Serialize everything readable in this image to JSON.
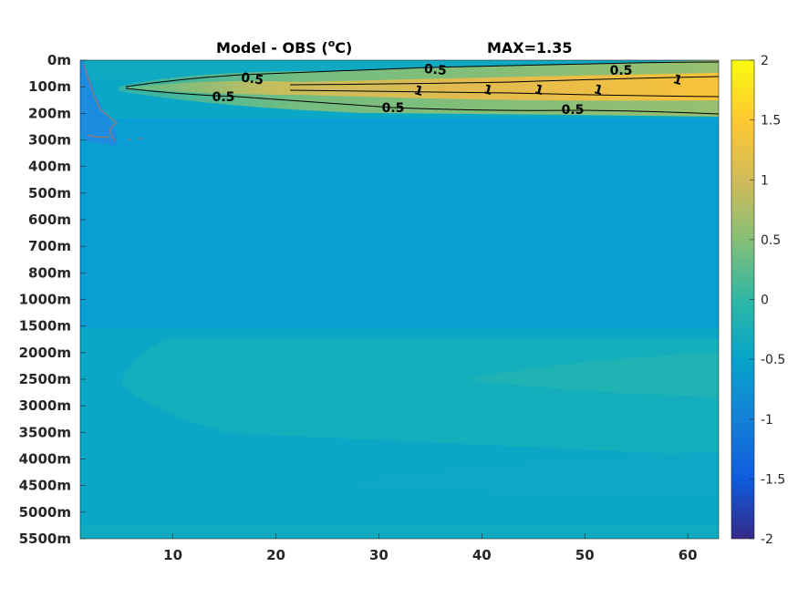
{
  "chart_data": {
    "type": "heatmap",
    "title": "Model - OBS (",
    "title_unit": "o",
    "title_tail": "C)",
    "max_label": "MAX=1.35",
    "x_ticks": [
      10,
      20,
      30,
      40,
      50,
      60
    ],
    "x_range": [
      1,
      63
    ],
    "depth_levels": [
      "0m",
      "100m",
      "200m",
      "300m",
      "400m",
      "500m",
      "600m",
      "700m",
      "800m",
      "1000m",
      "1500m",
      "2000m",
      "2500m",
      "3000m",
      "3500m",
      "4000m",
      "4500m",
      "5000m",
      "5500m"
    ],
    "colorbar": {
      "range": [
        -2,
        2
      ],
      "ticks": [
        "2",
        "1.5",
        "1",
        "0.5",
        "0",
        "-0.5",
        "-1",
        "-1.5",
        "-2"
      ],
      "colormap": "parula"
    },
    "contour_labels": [
      "0.5",
      "0.5",
      "0.5",
      "0.5",
      "0.5",
      "0.5",
      "1",
      "1",
      "1",
      "1",
      "1"
    ],
    "colors": {
      "contour": "#000000",
      "negative_contour": "#808080"
    }
  }
}
